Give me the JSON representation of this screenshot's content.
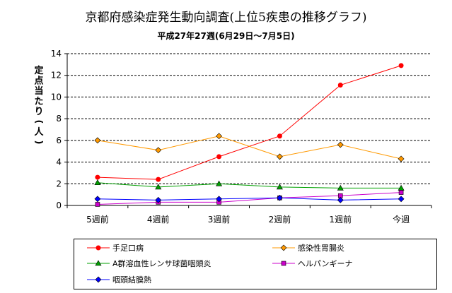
{
  "chart_data": {
    "type": "line",
    "title": "京都府感染症発生動向調査(上位5疾患の推移グラフ)",
    "subtitle": "平成27年27週(6月29日～7月5日)",
    "xlabel": "",
    "ylabel": "定点当たり(人)",
    "categories": [
      "5週前",
      "4週前",
      "3週前",
      "2週前",
      "1週前",
      "今週"
    ],
    "ylim": [
      0,
      14
    ],
    "yticks": [
      0,
      2,
      4,
      6,
      8,
      10,
      12,
      14
    ],
    "grid": "horizontal-dashed",
    "legend_position": "bottom",
    "series": [
      {
        "name": "手足口病",
        "color": "#ff0000",
        "marker": "circle",
        "values": [
          2.6,
          2.4,
          4.5,
          6.4,
          11.1,
          12.9
        ]
      },
      {
        "name": "感染性胃腸炎",
        "color": "#ff9900",
        "marker": "diamond",
        "values": [
          6.0,
          5.1,
          6.4,
          4.5,
          5.6,
          4.3
        ]
      },
      {
        "name": "A群溶血性レンサ球菌咽頭炎",
        "color": "#00a000",
        "marker": "triangle",
        "values": [
          2.1,
          1.7,
          2.0,
          1.7,
          1.6,
          1.6
        ]
      },
      {
        "name": "ヘルパンギーナ",
        "color": "#cc00cc",
        "marker": "square",
        "values": [
          0.1,
          0.3,
          0.3,
          0.7,
          0.9,
          1.2
        ]
      },
      {
        "name": "咽頭結膜熱",
        "color": "#0000ff",
        "marker": "diamond",
        "values": [
          0.6,
          0.5,
          0.6,
          0.7,
          0.5,
          0.6
        ]
      }
    ]
  }
}
